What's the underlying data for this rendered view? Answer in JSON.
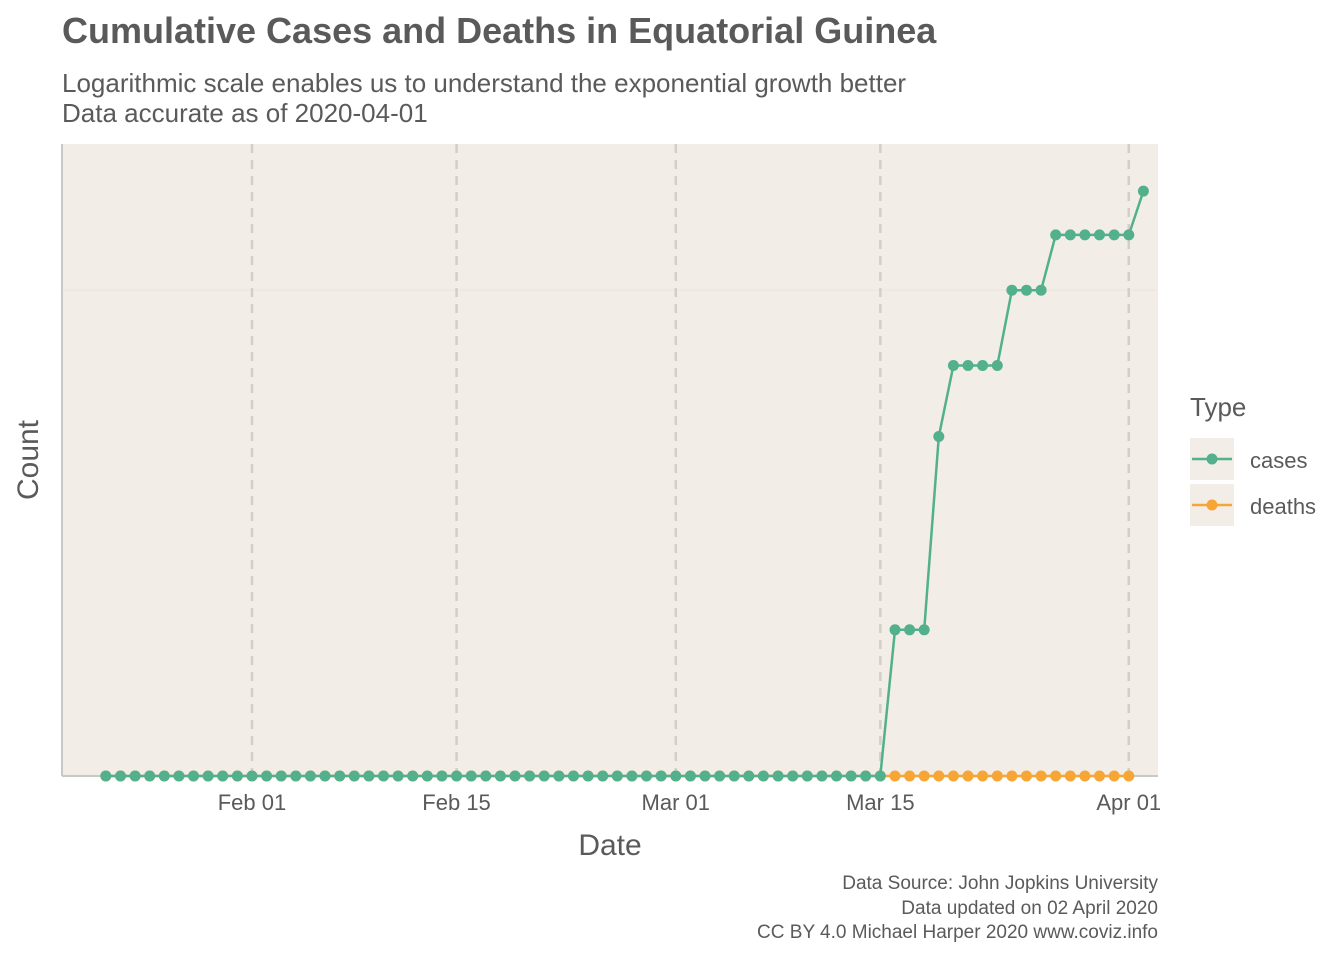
{
  "title": "Cumulative Cases and Deaths in Equatorial Guinea",
  "subtitle_lines": [
    "Logarithmic scale enables us to understand the exponential growth better",
    "Data accurate as of 2020-04-01"
  ],
  "caption_lines": [
    "Data Source: John Jopkins University",
    "Data updated on 02 April 2020",
    "CC BY 4.0 Michael Harper 2020 www.coviz.info"
  ],
  "colors": {
    "cases": "#52b08c",
    "deaths": "#f7a535",
    "panel": "#f3ede7",
    "gridline": "#d2cfcb",
    "axis": "#c8c8c8"
  },
  "chart_data": {
    "type": "line",
    "xlabel": "Date",
    "ylabel": "Count",
    "y_scale": "log10",
    "ylim": [
      1,
      20
    ],
    "x_range": [
      "2020-01-19",
      "2020-04-03"
    ],
    "x_ticks": [
      {
        "date": "2020-02-01",
        "label": "Feb 01"
      },
      {
        "date": "2020-02-15",
        "label": "Feb 15"
      },
      {
        "date": "2020-03-01",
        "label": "Mar 01"
      },
      {
        "date": "2020-03-15",
        "label": "Mar 15"
      },
      {
        "date": "2020-04-01",
        "label": "Apr 01"
      }
    ],
    "grid": {
      "x_major": "dashed",
      "y_major": "faint"
    },
    "legend": {
      "title": "Type",
      "position": "right",
      "entries": [
        "cases",
        "deaths"
      ]
    },
    "x_start": "2020-01-22",
    "x_end": "2020-04-01",
    "series": [
      {
        "name": "cases",
        "values": [
          0,
          0,
          0,
          0,
          0,
          0,
          0,
          0,
          0,
          0,
          0,
          0,
          0,
          0,
          0,
          0,
          0,
          0,
          0,
          0,
          0,
          0,
          0,
          0,
          0,
          0,
          0,
          0,
          0,
          0,
          0,
          0,
          0,
          0,
          0,
          0,
          0,
          0,
          0,
          0,
          0,
          0,
          0,
          0,
          0,
          0,
          0,
          0,
          0,
          0,
          0,
          0,
          0,
          0,
          1,
          1,
          1,
          4,
          6,
          6,
          6,
          6,
          9,
          9,
          9,
          12,
          12,
          12,
          12,
          12,
          12,
          15
        ]
      },
      {
        "name": "deaths",
        "values": [
          0,
          0,
          0,
          0,
          0,
          0,
          0,
          0,
          0,
          0,
          0,
          0,
          0,
          0,
          0,
          0,
          0,
          0,
          0,
          0,
          0,
          0,
          0,
          0,
          0,
          0,
          0,
          0,
          0,
          0,
          0,
          0,
          0,
          0,
          0,
          0,
          0,
          0,
          0,
          0,
          0,
          0,
          0,
          0,
          0,
          0,
          0,
          0,
          0,
          0,
          0,
          0,
          0,
          0,
          0,
          0,
          0,
          0,
          0,
          0,
          0,
          0,
          0,
          0,
          0,
          0,
          0,
          0,
          0,
          0,
          0
        ]
      }
    ]
  }
}
